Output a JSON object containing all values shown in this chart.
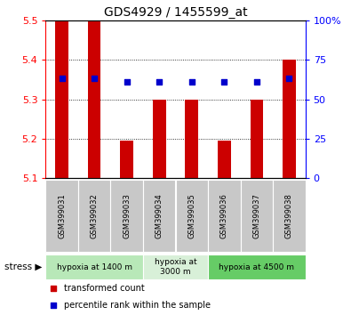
{
  "title": "GDS4929 / 1455599_at",
  "samples": [
    "GSM399031",
    "GSM399032",
    "GSM399033",
    "GSM399034",
    "GSM399035",
    "GSM399036",
    "GSM399037",
    "GSM399038"
  ],
  "bar_values": [
    5.5,
    5.5,
    5.195,
    5.3,
    5.3,
    5.195,
    5.3,
    5.4
  ],
  "percentile_values": [
    63,
    63,
    61,
    61,
    61,
    61,
    61,
    63
  ],
  "ymin": 5.1,
  "ymax": 5.5,
  "yticks": [
    5.1,
    5.2,
    5.3,
    5.4,
    5.5
  ],
  "right_yticks": [
    0,
    25,
    50,
    75,
    100
  ],
  "right_yticklabels": [
    "0",
    "25",
    "50",
    "75",
    "100%"
  ],
  "bar_color": "#cc0000",
  "dot_color": "#0000cc",
  "bar_bottom": 5.1,
  "groups": [
    {
      "label": "hypoxia at 1400 m",
      "start": 0,
      "end": 3,
      "color": "#b8e8b8"
    },
    {
      "label": "hypoxia at\n3000 m",
      "start": 3,
      "end": 5,
      "color": "#d8f0d8"
    },
    {
      "label": "hypoxia at 4500 m",
      "start": 5,
      "end": 8,
      "color": "#66cc66"
    }
  ],
  "stress_label": "stress",
  "legend_items": [
    {
      "color": "#cc0000",
      "label": "transformed count"
    },
    {
      "color": "#0000cc",
      "label": "percentile rank within the sample"
    }
  ],
  "title_fontsize": 10,
  "tick_fontsize": 8
}
